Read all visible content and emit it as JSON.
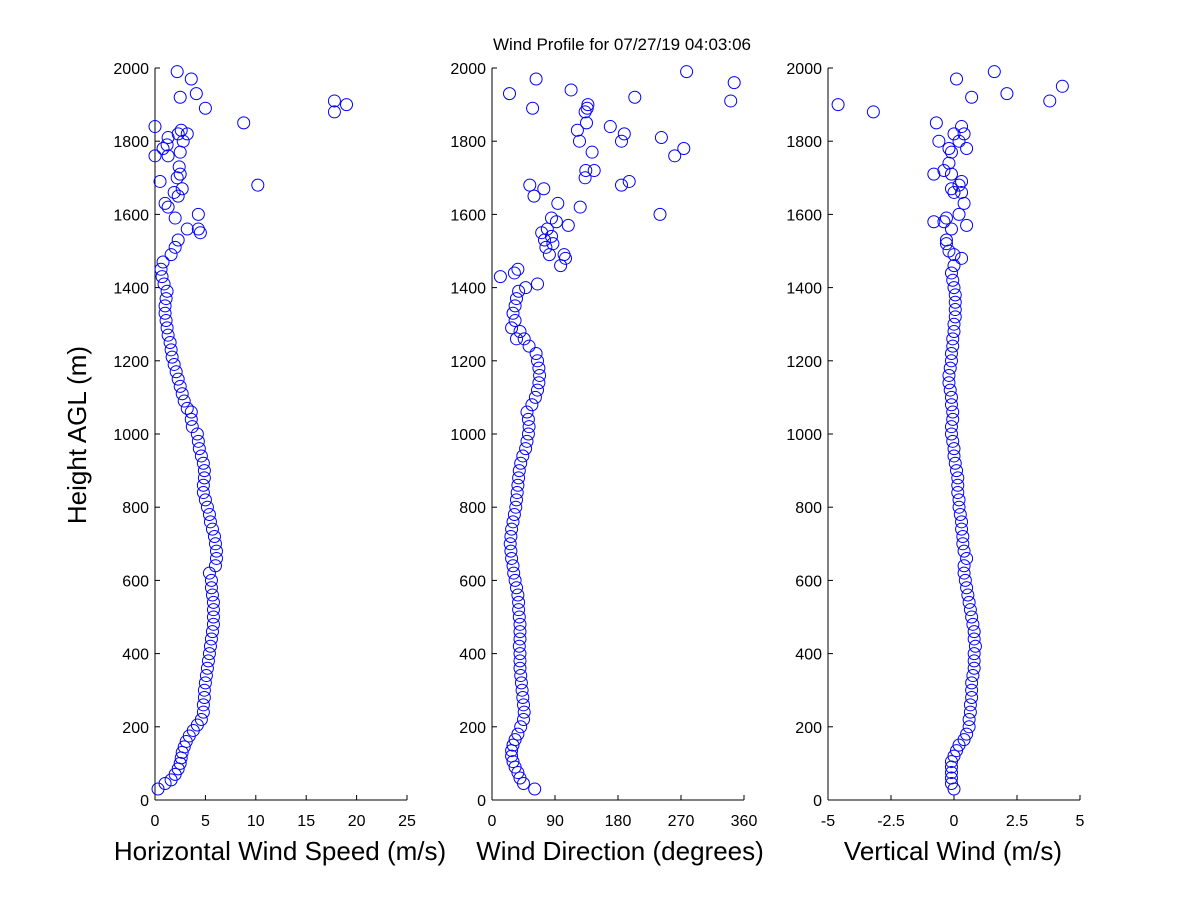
{
  "figure": {
    "title": "Wind Profile for  07/27/19 04:03:06",
    "ylabel": "Height AGL (m)",
    "marker_color": "#0000ff",
    "marker": "open-circle"
  },
  "chart_data": [
    {
      "type": "scatter",
      "xlabel": "Horizontal Wind Speed (m/s)",
      "ylabel": "Height AGL (m)",
      "xlim": [
        0,
        25
      ],
      "ylim": [
        0,
        2000
      ],
      "xticks": [
        "0",
        "5",
        "10",
        "15",
        "20",
        "25"
      ],
      "yticks": [
        "0",
        "200",
        "400",
        "600",
        "800",
        "1000",
        "1200",
        "1400",
        "1600",
        "1800",
        "2000"
      ],
      "grid": false,
      "points": [
        [
          0.3,
          30
        ],
        [
          1.0,
          45
        ],
        [
          1.6,
          55
        ],
        [
          2.0,
          70
        ],
        [
          2.3,
          85
        ],
        [
          2.5,
          100
        ],
        [
          2.6,
          115
        ],
        [
          2.7,
          130
        ],
        [
          2.9,
          145
        ],
        [
          3.1,
          160
        ],
        [
          3.4,
          175
        ],
        [
          3.8,
          190
        ],
        [
          4.2,
          205
        ],
        [
          4.6,
          220
        ],
        [
          4.8,
          240
        ],
        [
          4.8,
          260
        ],
        [
          4.9,
          280
        ],
        [
          4.9,
          300
        ],
        [
          5.0,
          320
        ],
        [
          5.1,
          340
        ],
        [
          5.2,
          360
        ],
        [
          5.3,
          380
        ],
        [
          5.4,
          400
        ],
        [
          5.5,
          420
        ],
        [
          5.6,
          440
        ],
        [
          5.7,
          460
        ],
        [
          5.8,
          480
        ],
        [
          5.8,
          500
        ],
        [
          5.8,
          520
        ],
        [
          5.8,
          540
        ],
        [
          5.7,
          560
        ],
        [
          5.6,
          580
        ],
        [
          5.6,
          600
        ],
        [
          5.4,
          620
        ],
        [
          6.0,
          640
        ],
        [
          6.1,
          660
        ],
        [
          6.1,
          680
        ],
        [
          6.0,
          700
        ],
        [
          5.9,
          720
        ],
        [
          5.7,
          740
        ],
        [
          5.5,
          760
        ],
        [
          5.4,
          780
        ],
        [
          5.2,
          800
        ],
        [
          5.0,
          820
        ],
        [
          4.8,
          840
        ],
        [
          4.8,
          860
        ],
        [
          4.9,
          880
        ],
        [
          4.9,
          900
        ],
        [
          4.8,
          920
        ],
        [
          4.6,
          940
        ],
        [
          4.4,
          960
        ],
        [
          4.3,
          980
        ],
        [
          4.2,
          1000
        ],
        [
          3.7,
          1020
        ],
        [
          3.6,
          1040
        ],
        [
          3.6,
          1060
        ],
        [
          3.2,
          1070
        ],
        [
          2.9,
          1090
        ],
        [
          2.7,
          1110
        ],
        [
          2.5,
          1130
        ],
        [
          2.3,
          1150
        ],
        [
          2.1,
          1170
        ],
        [
          1.9,
          1190
        ],
        [
          1.7,
          1210
        ],
        [
          1.6,
          1230
        ],
        [
          1.5,
          1250
        ],
        [
          1.3,
          1270
        ],
        [
          1.2,
          1290
        ],
        [
          1.1,
          1310
        ],
        [
          1.0,
          1330
        ],
        [
          1.0,
          1350
        ],
        [
          1.1,
          1370
        ],
        [
          1.2,
          1390
        ],
        [
          0.9,
          1410
        ],
        [
          0.7,
          1430
        ],
        [
          0.6,
          1450
        ],
        [
          0.8,
          1470
        ],
        [
          1.6,
          1490
        ],
        [
          2.0,
          1510
        ],
        [
          2.3,
          1530
        ],
        [
          4.5,
          1550
        ],
        [
          4.3,
          1560
        ],
        [
          3.2,
          1560
        ],
        [
          4.3,
          1600
        ],
        [
          2.0,
          1590
        ],
        [
          1.3,
          1620
        ],
        [
          1.0,
          1630
        ],
        [
          2.7,
          1670
        ],
        [
          2.3,
          1650
        ],
        [
          1.9,
          1660
        ],
        [
          10.2,
          1680
        ],
        [
          0.5,
          1690
        ],
        [
          2.2,
          1700
        ],
        [
          2.5,
          1710
        ],
        [
          2.4,
          1730
        ],
        [
          2.5,
          1770
        ],
        [
          1.3,
          1760
        ],
        [
          0.0,
          1760
        ],
        [
          0.8,
          1780
        ],
        [
          1.2,
          1790
        ],
        [
          2.8,
          1800
        ],
        [
          1.3,
          1810
        ],
        [
          2.3,
          1820
        ],
        [
          3.2,
          1820
        ],
        [
          2.6,
          1830
        ],
        [
          0.0,
          1840
        ],
        [
          8.8,
          1850
        ],
        [
          17.8,
          1880
        ],
        [
          5.0,
          1890
        ],
        [
          17.8,
          1910
        ],
        [
          19.0,
          1900
        ],
        [
          2.5,
          1920
        ],
        [
          4.1,
          1930
        ],
        [
          3.6,
          1970
        ],
        [
          2.2,
          1990
        ]
      ]
    },
    {
      "type": "scatter",
      "xlabel": "Wind Direction (degrees)",
      "ylabel": "",
      "xlim": [
        0,
        360
      ],
      "ylim": [
        0,
        2000
      ],
      "xticks": [
        "0",
        "90",
        "180",
        "270",
        "360"
      ],
      "yticks": [
        "0",
        "200",
        "400",
        "600",
        "800",
        "1000",
        "1200",
        "1400",
        "1600",
        "1800",
        "2000"
      ],
      "grid": false,
      "points": [
        [
          61,
          30
        ],
        [
          45,
          45
        ],
        [
          40,
          60
        ],
        [
          37,
          75
        ],
        [
          33,
          90
        ],
        [
          30,
          105
        ],
        [
          28,
          120
        ],
        [
          28,
          135
        ],
        [
          30,
          150
        ],
        [
          33,
          165
        ],
        [
          37,
          180
        ],
        [
          41,
          200
        ],
        [
          45,
          220
        ],
        [
          46,
          240
        ],
        [
          45,
          260
        ],
        [
          44,
          280
        ],
        [
          43,
          300
        ],
        [
          42,
          320
        ],
        [
          41,
          340
        ],
        [
          40,
          360
        ],
        [
          40,
          380
        ],
        [
          40,
          400
        ],
        [
          39,
          420
        ],
        [
          40,
          440
        ],
        [
          40,
          460
        ],
        [
          40,
          480
        ],
        [
          39,
          500
        ],
        [
          38,
          520
        ],
        [
          38,
          540
        ],
        [
          37,
          560
        ],
        [
          35,
          580
        ],
        [
          33,
          600
        ],
        [
          31,
          620
        ],
        [
          30,
          640
        ],
        [
          28,
          660
        ],
        [
          27,
          680
        ],
        [
          26,
          700
        ],
        [
          27,
          720
        ],
        [
          28,
          740
        ],
        [
          30,
          760
        ],
        [
          32,
          780
        ],
        [
          34,
          800
        ],
        [
          35,
          820
        ],
        [
          36,
          840
        ],
        [
          37,
          860
        ],
        [
          38,
          880
        ],
        [
          39,
          900
        ],
        [
          41,
          920
        ],
        [
          44,
          940
        ],
        [
          48,
          960
        ],
        [
          50,
          980
        ],
        [
          52,
          1000
        ],
        [
          53,
          1020
        ],
        [
          52,
          1040
        ],
        [
          50,
          1060
        ],
        [
          57,
          1080
        ],
        [
          62,
          1100
        ],
        [
          65,
          1120
        ],
        [
          67,
          1140
        ],
        [
          68,
          1160
        ],
        [
          67,
          1180
        ],
        [
          65,
          1200
        ],
        [
          63,
          1220
        ],
        [
          53,
          1240
        ],
        [
          46,
          1260
        ],
        [
          35,
          1260
        ],
        [
          40,
          1280
        ],
        [
          28,
          1290
        ],
        [
          33,
          1310
        ],
        [
          30,
          1330
        ],
        [
          33,
          1350
        ],
        [
          35,
          1370
        ],
        [
          38,
          1390
        ],
        [
          48,
          1400
        ],
        [
          65,
          1410
        ],
        [
          12,
          1430
        ],
        [
          32,
          1440
        ],
        [
          37,
          1450
        ],
        [
          98,
          1460
        ],
        [
          105,
          1480
        ],
        [
          103,
          1490
        ],
        [
          82,
          1490
        ],
        [
          77,
          1510
        ],
        [
          87,
          1520
        ],
        [
          75,
          1530
        ],
        [
          85,
          1540
        ],
        [
          71,
          1550
        ],
        [
          79,
          1560
        ],
        [
          109,
          1570
        ],
        [
          92,
          1580
        ],
        [
          85,
          1590
        ],
        [
          126,
          1620
        ],
        [
          94,
          1630
        ],
        [
          240,
          1600
        ],
        [
          60,
          1650
        ],
        [
          74,
          1670
        ],
        [
          54,
          1680
        ],
        [
          185,
          1680
        ],
        [
          196,
          1690
        ],
        [
          133,
          1700
        ],
        [
          134,
          1720
        ],
        [
          146,
          1720
        ],
        [
          143,
          1770
        ],
        [
          261,
          1760
        ],
        [
          274,
          1780
        ],
        [
          185,
          1800
        ],
        [
          125,
          1800
        ],
        [
          242,
          1810
        ],
        [
          189,
          1820
        ],
        [
          122,
          1830
        ],
        [
          169,
          1840
        ],
        [
          135,
          1850
        ],
        [
          133,
          1880
        ],
        [
          136,
          1890
        ],
        [
          137,
          1900
        ],
        [
          341,
          1910
        ],
        [
          58,
          1890
        ],
        [
          25,
          1930
        ],
        [
          204,
          1920
        ],
        [
          113,
          1940
        ],
        [
          346,
          1960
        ],
        [
          63,
          1970
        ],
        [
          278,
          1990
        ]
      ]
    },
    {
      "type": "scatter",
      "xlabel": "Vertical Wind (m/s)",
      "ylabel": "",
      "xlim": [
        -5,
        5
      ],
      "ylim": [
        0,
        2000
      ],
      "xticks": [
        "-5",
        "-2.5",
        "0",
        "2.5",
        "5"
      ],
      "yticks": [
        "0",
        "200",
        "400",
        "600",
        "800",
        "1000",
        "1200",
        "1400",
        "1600",
        "1800",
        "2000"
      ],
      "grid": false,
      "points": [
        [
          0.0,
          30
        ],
        [
          -0.1,
          45
        ],
        [
          -0.1,
          60
        ],
        [
          -0.1,
          75
        ],
        [
          -0.1,
          90
        ],
        [
          -0.1,
          105
        ],
        [
          0.0,
          120
        ],
        [
          0.1,
          135
        ],
        [
          0.2,
          150
        ],
        [
          0.4,
          165
        ],
        [
          0.5,
          180
        ],
        [
          0.6,
          200
        ],
        [
          0.6,
          220
        ],
        [
          0.65,
          240
        ],
        [
          0.65,
          260
        ],
        [
          0.7,
          280
        ],
        [
          0.7,
          300
        ],
        [
          0.7,
          320
        ],
        [
          0.75,
          340
        ],
        [
          0.8,
          360
        ],
        [
          0.8,
          380
        ],
        [
          0.8,
          400
        ],
        [
          0.85,
          420
        ],
        [
          0.8,
          440
        ],
        [
          0.8,
          460
        ],
        [
          0.75,
          480
        ],
        [
          0.7,
          500
        ],
        [
          0.65,
          520
        ],
        [
          0.6,
          540
        ],
        [
          0.55,
          560
        ],
        [
          0.5,
          580
        ],
        [
          0.45,
          600
        ],
        [
          0.4,
          620
        ],
        [
          0.4,
          640
        ],
        [
          0.5,
          660
        ],
        [
          0.4,
          680
        ],
        [
          0.35,
          700
        ],
        [
          0.35,
          720
        ],
        [
          0.3,
          740
        ],
        [
          0.3,
          760
        ],
        [
          0.25,
          780
        ],
        [
          0.2,
          800
        ],
        [
          0.2,
          820
        ],
        [
          0.15,
          840
        ],
        [
          0.15,
          860
        ],
        [
          0.15,
          880
        ],
        [
          0.1,
          900
        ],
        [
          0.05,
          920
        ],
        [
          0.0,
          940
        ],
        [
          0.0,
          960
        ],
        [
          -0.05,
          980
        ],
        [
          -0.1,
          1000
        ],
        [
          -0.1,
          1020
        ],
        [
          -0.05,
          1040
        ],
        [
          -0.05,
          1060
        ],
        [
          -0.1,
          1080
        ],
        [
          -0.1,
          1100
        ],
        [
          -0.15,
          1120
        ],
        [
          -0.2,
          1140
        ],
        [
          -0.2,
          1160
        ],
        [
          -0.15,
          1180
        ],
        [
          -0.1,
          1200
        ],
        [
          -0.1,
          1220
        ],
        [
          -0.05,
          1240
        ],
        [
          -0.05,
          1260
        ],
        [
          0.0,
          1280
        ],
        [
          0.0,
          1300
        ],
        [
          0.05,
          1320
        ],
        [
          0.05,
          1340
        ],
        [
          0.05,
          1360
        ],
        [
          0.05,
          1380
        ],
        [
          0.0,
          1400
        ],
        [
          -0.05,
          1420
        ],
        [
          -0.1,
          1440
        ],
        [
          0.0,
          1460
        ],
        [
          0.3,
          1480
        ],
        [
          0.0,
          1490
        ],
        [
          -0.2,
          1500
        ],
        [
          -0.3,
          1520
        ],
        [
          -0.3,
          1530
        ],
        [
          -0.1,
          1560
        ],
        [
          -0.4,
          1580
        ],
        [
          -0.8,
          1580
        ],
        [
          -0.3,
          1590
        ],
        [
          0.2,
          1600
        ],
        [
          0.5,
          1570
        ],
        [
          0.4,
          1630
        ],
        [
          0.3,
          1660
        ],
        [
          0.0,
          1660
        ],
        [
          0.2,
          1680
        ],
        [
          -0.1,
          1670
        ],
        [
          0.3,
          1690
        ],
        [
          -0.8,
          1710
        ],
        [
          -0.4,
          1720
        ],
        [
          -0.1,
          1710
        ],
        [
          -0.2,
          1740
        ],
        [
          -0.1,
          1770
        ],
        [
          -0.2,
          1780
        ],
        [
          0.5,
          1780
        ],
        [
          0.2,
          1800
        ],
        [
          -0.6,
          1800
        ],
        [
          0.0,
          1820
        ],
        [
          0.4,
          1820
        ],
        [
          0.3,
          1840
        ],
        [
          -0.7,
          1850
        ],
        [
          -4.6,
          1900
        ],
        [
          -3.2,
          1880
        ],
        [
          0.7,
          1920
        ],
        [
          2.1,
          1930
        ],
        [
          3.8,
          1910
        ],
        [
          4.3,
          1950
        ],
        [
          1.6,
          1990
        ],
        [
          0.1,
          1970
        ]
      ]
    }
  ]
}
